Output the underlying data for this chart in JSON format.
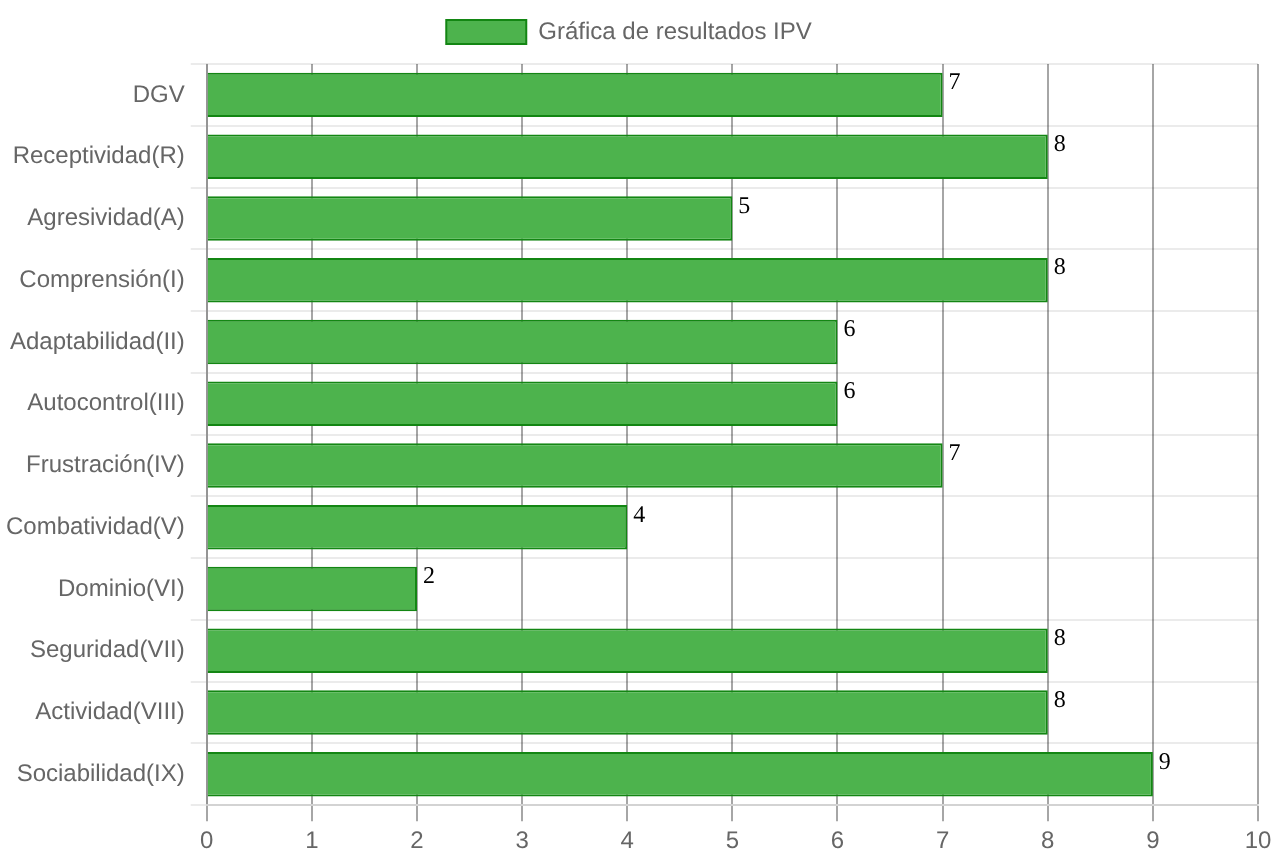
{
  "chart_data": {
    "type": "bar",
    "orientation": "horizontal",
    "categories": [
      "DGV",
      "Receptividad(R)",
      "Agresividad(A)",
      "Comprensión(I)",
      "Adaptabilidad(II)",
      "Autocontrol(III)",
      "Frustración(IV)",
      "Combatividad(V)",
      "Dominio(VI)",
      "Seguridad(VII)",
      "Actividad(VIII)",
      "Sociabilidad(IX)"
    ],
    "series": [
      {
        "name": "Gráfica de resultados IPV",
        "color": "#4db34d",
        "values": [
          7,
          8,
          5,
          8,
          6,
          6,
          7,
          4,
          2,
          8,
          8,
          9
        ]
      }
    ],
    "xlim": [
      0,
      10
    ],
    "xticks": [
      0,
      1,
      2,
      3,
      4,
      5,
      6,
      7,
      8,
      9,
      10
    ],
    "grid": true,
    "legend": "top",
    "data_labels": true
  }
}
